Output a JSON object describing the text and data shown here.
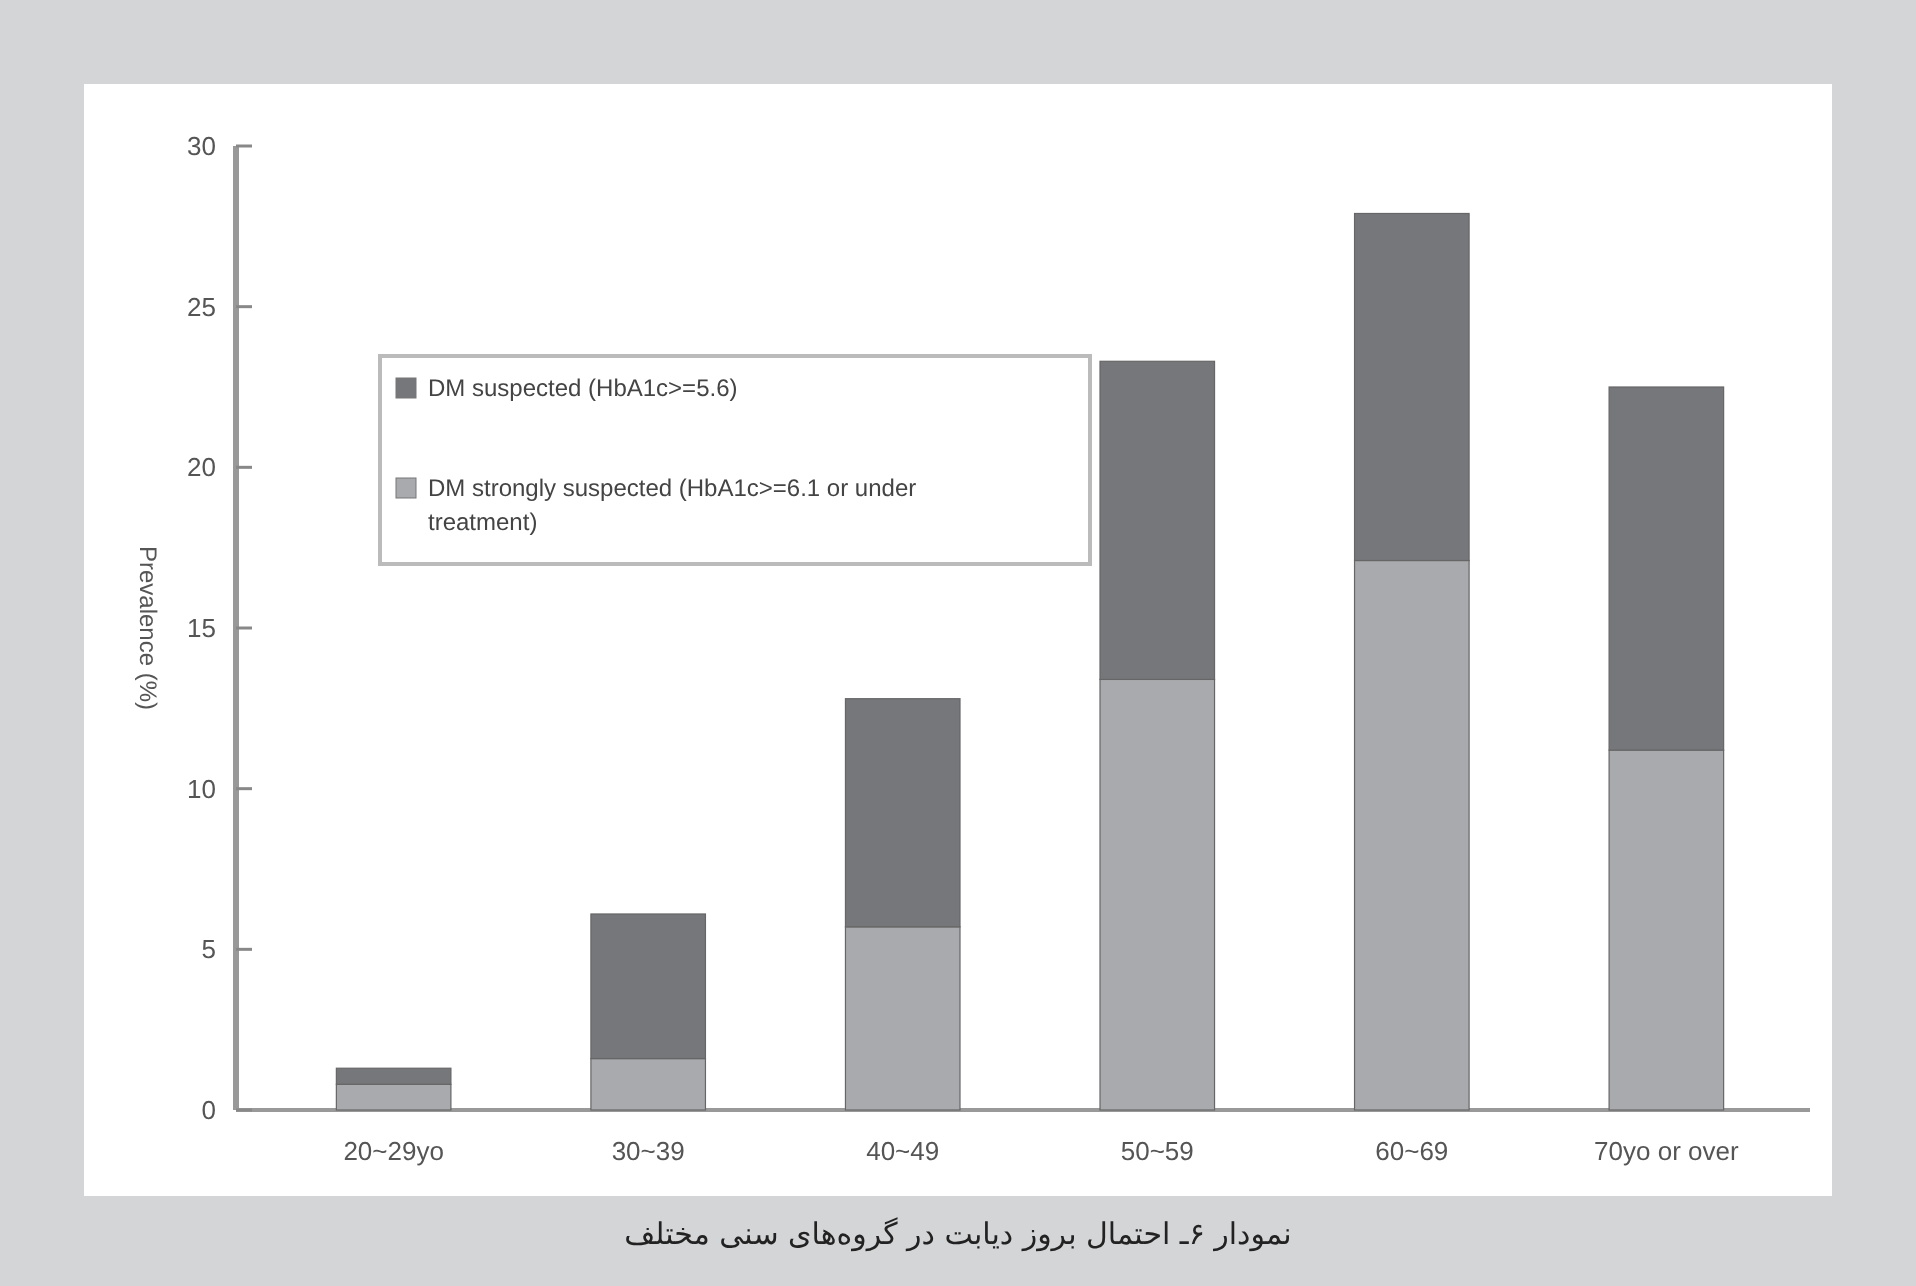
{
  "chart_data": {
    "type": "bar",
    "title": "نمودار ۶ـ احتمال بروز دیابت در گروه‌های سنی مختلف",
    "ylabel": "Prevalence (%)",
    "categories": [
      "20~29yo",
      "30~39",
      "40~49",
      "50~59",
      "60~69",
      "70yo or over"
    ],
    "stacked": true,
    "legend": "top left",
    "ylim": [
      0,
      30
    ],
    "yticks": [
      0,
      5,
      10,
      15,
      20,
      25,
      30
    ],
    "series": [
      {
        "name": "DM strongly suspected (HbA1c>=6.1 or under treatment)",
        "color": "#a8aaad",
        "values": [
          0.8,
          1.6,
          5.7,
          13.4,
          17.1,
          11.2
        ]
      },
      {
        "name": "DM suspected (HbA1c>=5.6)",
        "color": "#76777b",
        "values": [
          0.5,
          4.5,
          7.1,
          9.9,
          10.8,
          11.3
        ]
      }
    ]
  }
}
